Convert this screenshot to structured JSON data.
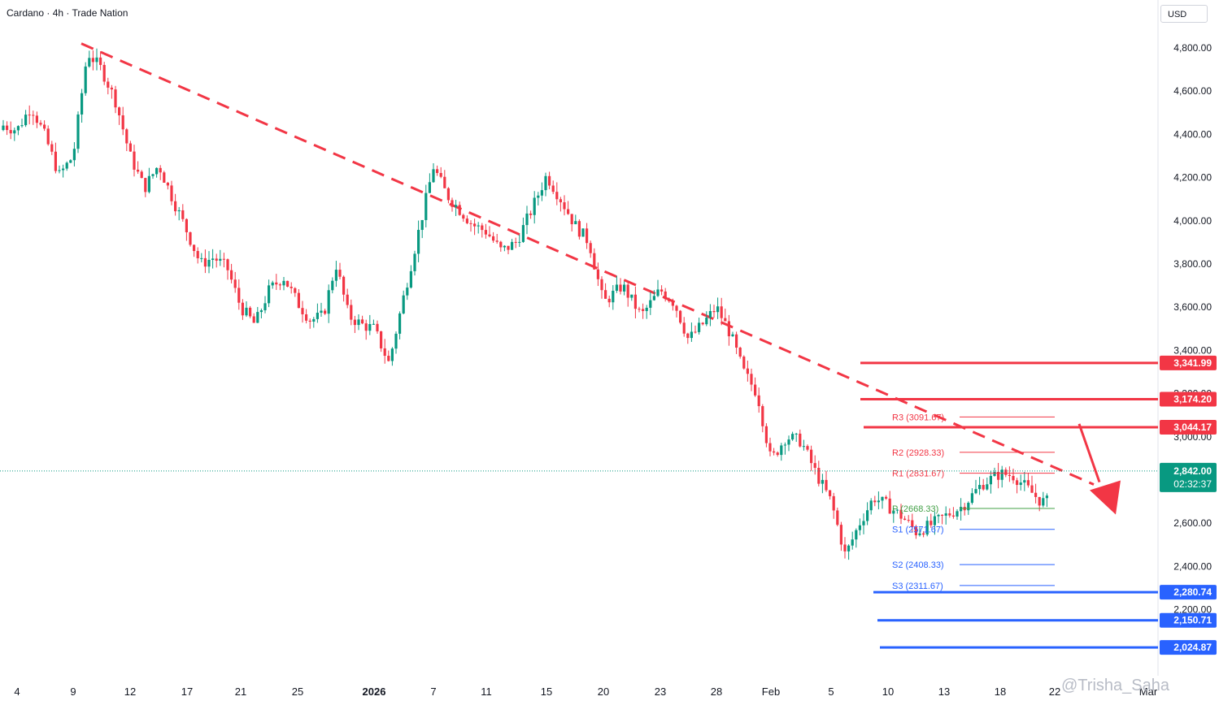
{
  "header": {
    "title": "Cardano · 4h · Trade Nation",
    "currency": "USD"
  },
  "watermark": "@Trisha_Saha",
  "colors": {
    "bull": "#089981",
    "bear": "#f23645",
    "resistance": "#f23645",
    "support": "#2962ff",
    "pivot": "#43a047",
    "current": "#089981",
    "trendline": "#f23645"
  },
  "chart_data": {
    "type": "candlestick",
    "symbol": "Cardano",
    "timeframe": "4h",
    "ylim": [
      1995,
      4910
    ],
    "y_ticks": [
      2200,
      2400,
      2600,
      3000,
      3200,
      3400,
      3600,
      3800,
      4000,
      4200,
      4400,
      4600,
      4800
    ],
    "y_tick_labels": [
      "2,200.00",
      "2,400.00",
      "2,600.00",
      "3,000.00",
      "3,200.00",
      "3,400.00",
      "3,600.00",
      "3,800.00",
      "4,000.00",
      "4,200.00",
      "4,400.00",
      "4,600.00",
      "4,800.00"
    ],
    "x_ticks": [
      "4",
      "9",
      "12",
      "17",
      "21",
      "25",
      "2026",
      "7",
      "11",
      "15",
      "20",
      "23",
      "28",
      "Feb",
      "5",
      "10",
      "13",
      "18",
      "22",
      "Mar"
    ],
    "current_price": {
      "label": "2,842.00",
      "countdown": "02:32:37",
      "value": 2842
    },
    "resistance_levels": [
      {
        "label": "3,341.99",
        "value": 3341.99
      },
      {
        "label": "3,174.20",
        "value": 3174.2
      },
      {
        "label": "3,044.17",
        "value": 3044.17
      }
    ],
    "support_levels": [
      {
        "label": "2,280.74",
        "value": 2280.74
      },
      {
        "label": "2,150.71",
        "value": 2150.71
      },
      {
        "label": "2,024.87",
        "value": 2024.87
      }
    ],
    "pivots": [
      {
        "label": "R3 (3091.67)",
        "value": 3091.67,
        "kind": "resistance"
      },
      {
        "label": "R2 (2928.33)",
        "value": 2928.33,
        "kind": "resistance"
      },
      {
        "label": "R1 (2831.67)",
        "value": 2831.67,
        "kind": "resistance"
      },
      {
        "label": "P (2668.33)",
        "value": 2668.33,
        "kind": "pivot"
      },
      {
        "label": "S1 (2571.67)",
        "value": 2571.67,
        "kind": "support"
      },
      {
        "label": "S2 (2408.33)",
        "value": 2408.33,
        "kind": "support"
      },
      {
        "label": "S3 (2311.67)",
        "value": 2311.67,
        "kind": "support"
      }
    ],
    "trendline": {
      "start": {
        "x": "9",
        "y": 4820
      },
      "end": {
        "x": "Feb",
        "y": 3430
      }
    },
    "projection_arrow": {
      "from": 3060,
      "to": 2640,
      "direction": "down"
    },
    "price_path": [
      {
        "x": "4",
        "y": 4420
      },
      {
        "x": "4",
        "y": 4530
      },
      {
        "x": "4",
        "y": 4390
      },
      {
        "x": "4",
        "y": 4210
      },
      {
        "x": "9",
        "y": 4300
      },
      {
        "x": "9",
        "y": 4780
      },
      {
        "x": "9",
        "y": 4700
      },
      {
        "x": "9",
        "y": 4550
      },
      {
        "x": "12",
        "y": 4300
      },
      {
        "x": "12",
        "y": 4150
      },
      {
        "x": "12",
        "y": 4260
      },
      {
        "x": "12",
        "y": 4100
      },
      {
        "x": "17",
        "y": 3950
      },
      {
        "x": "17",
        "y": 3800
      },
      {
        "x": "17",
        "y": 3830
      },
      {
        "x": "17",
        "y": 3780
      },
      {
        "x": "21",
        "y": 3600
      },
      {
        "x": "21",
        "y": 3520
      },
      {
        "x": "21",
        "y": 3680
      },
      {
        "x": "21",
        "y": 3740
      },
      {
        "x": "25",
        "y": 3620
      },
      {
        "x": "25",
        "y": 3540
      },
      {
        "x": "25",
        "y": 3560
      },
      {
        "x": "25",
        "y": 3800
      },
      {
        "x": "25",
        "y": 3560
      },
      {
        "x": "25",
        "y": 3520
      },
      {
        "x": "2026",
        "y": 3500
      },
      {
        "x": "2026",
        "y": 3340
      },
      {
        "x": "2026",
        "y": 3650
      },
      {
        "x": "2026",
        "y": 3950
      },
      {
        "x": "7",
        "y": 4250
      },
      {
        "x": "7",
        "y": 4120
      },
      {
        "x": "7",
        "y": 4050
      },
      {
        "x": "7",
        "y": 3980
      },
      {
        "x": "11",
        "y": 3950
      },
      {
        "x": "11",
        "y": 3860
      },
      {
        "x": "11",
        "y": 3900
      },
      {
        "x": "11",
        "y": 4050
      },
      {
        "x": "15",
        "y": 4210
      },
      {
        "x": "15",
        "y": 4100
      },
      {
        "x": "15",
        "y": 3980
      },
      {
        "x": "15",
        "y": 3900
      },
      {
        "x": "20",
        "y": 3620
      },
      {
        "x": "20",
        "y": 3700
      },
      {
        "x": "20",
        "y": 3560
      },
      {
        "x": "23",
        "y": 3680
      },
      {
        "x": "23",
        "y": 3620
      },
      {
        "x": "23",
        "y": 3450
      },
      {
        "x": "23",
        "y": 3520
      },
      {
        "x": "28",
        "y": 3600
      },
      {
        "x": "28",
        "y": 3480
      },
      {
        "x": "28",
        "y": 3300
      },
      {
        "x": "28",
        "y": 3200
      },
      {
        "x": "Feb",
        "y": 2890
      },
      {
        "x": "Feb",
        "y": 3000
      },
      {
        "x": "Feb",
        "y": 2980
      },
      {
        "x": "Feb",
        "y": 2830
      },
      {
        "x": "5",
        "y": 2700
      },
      {
        "x": "5",
        "y": 2450
      },
      {
        "x": "5",
        "y": 2600
      },
      {
        "x": "5",
        "y": 2720
      },
      {
        "x": "10",
        "y": 2680
      },
      {
        "x": "10",
        "y": 2630
      },
      {
        "x": "10",
        "y": 2560
      },
      {
        "x": "10",
        "y": 2590
      },
      {
        "x": "13",
        "y": 2630
      },
      {
        "x": "13",
        "y": 2680
      },
      {
        "x": "13",
        "y": 2780
      },
      {
        "x": "18",
        "y": 2830
      },
      {
        "x": "18",
        "y": 2820
      },
      {
        "x": "18",
        "y": 2760
      },
      {
        "x": "18",
        "y": 2700
      },
      {
        "x": "22",
        "y": 2700
      },
      {
        "x": "22",
        "y": 2842
      }
    ]
  }
}
